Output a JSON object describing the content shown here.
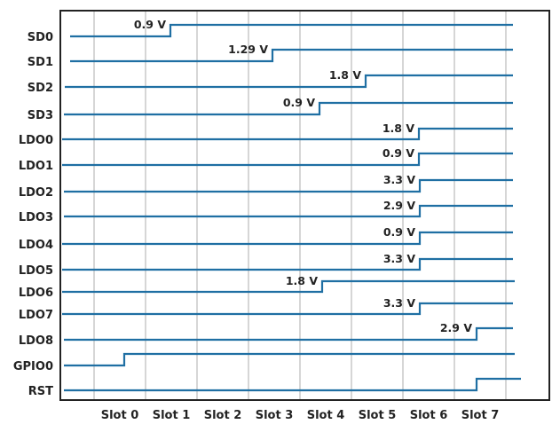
{
  "signals": [
    {
      "name": "SD0",
      "voltage": "0.9 V"
    },
    {
      "name": "SD1",
      "voltage": "1.29 V"
    },
    {
      "name": "SD2",
      "voltage": "1.8 V"
    },
    {
      "name": "SD3",
      "voltage": "0.9 V"
    },
    {
      "name": "LDO0",
      "voltage": "1.8 V"
    },
    {
      "name": "LDO1",
      "voltage": "0.9 V"
    },
    {
      "name": "LDO2",
      "voltage": "3.3 V"
    },
    {
      "name": "LDO3",
      "voltage": "2.9 V"
    },
    {
      "name": "LDO4",
      "voltage": "0.9 V"
    },
    {
      "name": "LDO5",
      "voltage": "3.3 V"
    },
    {
      "name": "LDO6",
      "voltage": "1.8 V"
    },
    {
      "name": "LDO7",
      "voltage": "3.3 V"
    },
    {
      "name": "LDO8",
      "voltage": "2.9 V"
    },
    {
      "name": "GPIO0",
      "voltage": ""
    },
    {
      "name": "RST",
      "voltage": ""
    }
  ],
  "slots": [
    "Slot 0",
    "Slot 1",
    "Slot 2",
    "Slot 3",
    "Slot 4",
    "Slot 5",
    "Slot 6",
    "Slot 7"
  ],
  "colors": {
    "signal": "#1f6fa3",
    "grid": "#c8c8c8",
    "frame": "#222222"
  }
}
